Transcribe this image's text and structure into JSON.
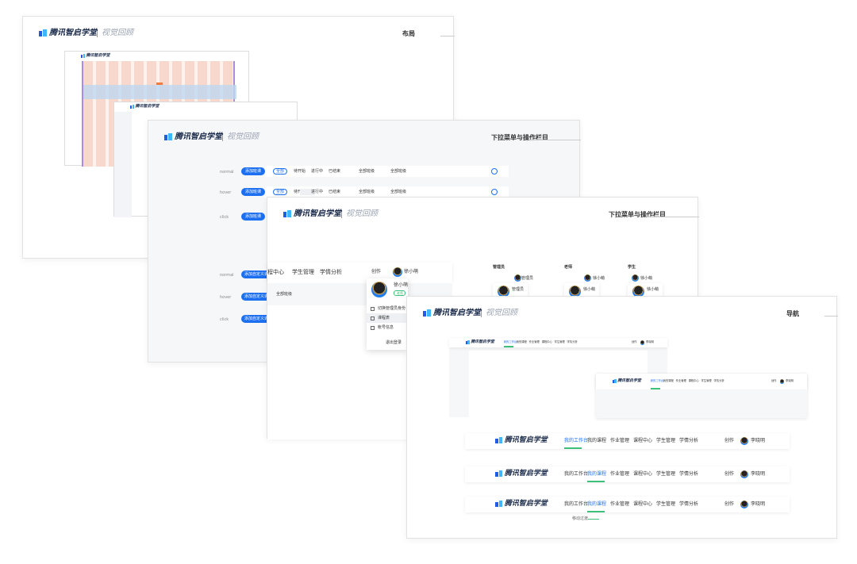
{
  "brand": "腾讯智启学堂",
  "subtitle": "视觉回顾",
  "layout_card": {
    "title": "布局"
  },
  "dropdown_card": {
    "title": "下拉菜单与操作栏目",
    "states": [
      "normal",
      "hover",
      "click"
    ],
    "add_button": "添加班课",
    "custom_button": "添加自定义课程",
    "tabs": [
      "全部",
      "待开始",
      "进行中",
      "已结束"
    ],
    "filters": [
      "全部班级",
      "全部班级"
    ]
  },
  "menu_card": {
    "title": "下拉菜单与操作栏目",
    "nav": [
      "程中心",
      "学生管理",
      "学情分析"
    ],
    "create": "创作",
    "user": "徐小萌",
    "role_tag": "老师",
    "menu": [
      "切换管理员身份",
      "课程表",
      "帐号信息"
    ],
    "logout": "退出登录",
    "filter": "全部班级",
    "roles": [
      {
        "role": "管理员",
        "user": "管理员"
      },
      {
        "role": "老师",
        "user": "徐小萌"
      },
      {
        "role": "学生",
        "user": "徐小萌"
      }
    ]
  },
  "nav_card": {
    "title": "导航",
    "nav": [
      "我的工作台",
      "我的课程",
      "作业管理",
      "课程中心",
      "学生管理",
      "学情分析"
    ],
    "create": "创作",
    "user": "李晓明",
    "caption": "移动过渡"
  }
}
